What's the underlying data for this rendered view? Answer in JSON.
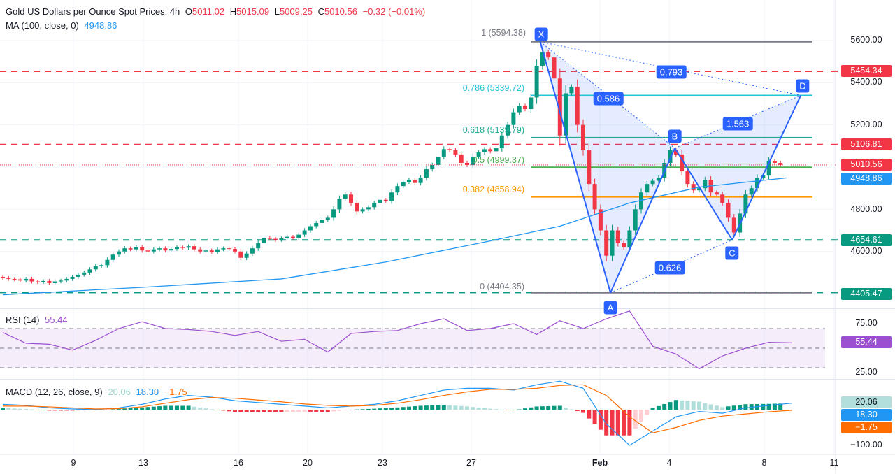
{
  "header": {
    "title": "Gold US Dollars per Ounce Spot Prices, 4h",
    "open_label": "O",
    "open": "5011.02",
    "high_label": "H",
    "high": "5015.09",
    "low_label": "L",
    "low": "5009.25",
    "close_label": "C",
    "close": "5010.56",
    "change": "−0.32 (−0.01%)",
    "ma_label": "MA (100, close, 0)",
    "ma_value": "4948.86"
  },
  "chart_data": [
    {
      "type": "candlestick",
      "title": "Gold US Dollars per Ounce Spot Prices, 4h",
      "ylim": [
        4330,
        5700
      ],
      "yticks": [
        "5600.00",
        "5400.00",
        "5200.00",
        "4800.00",
        "4600.00"
      ],
      "xticks": [
        "9",
        "13",
        "16",
        "20",
        "23",
        "27",
        "Feb",
        "4",
        "8",
        "11"
      ],
      "closes": [
        4475,
        4470,
        4468,
        4462,
        4470,
        4458,
        4455,
        4460,
        4450,
        4458,
        4462,
        4470,
        4480,
        4490,
        4500,
        4515,
        4530,
        4535,
        4560,
        4585,
        4600,
        4615,
        4610,
        4620,
        4605,
        4600,
        4610,
        4615,
        4605,
        4612,
        4620,
        4618,
        4625,
        4610,
        4600,
        4605,
        4598,
        4610,
        4615,
        4612,
        4600,
        4570,
        4590,
        4615,
        4640,
        4665,
        4660,
        4655,
        4662,
        4670,
        4665,
        4680,
        4700,
        4720,
        4735,
        4750,
        4760,
        4800,
        4850,
        4870,
        4830,
        4790,
        4800,
        4810,
        4830,
        4845,
        4840,
        4880,
        4910,
        4930,
        4940,
        4925,
        4950,
        4990,
        5010,
        5050,
        5085,
        5080,
        5060,
        5020,
        5010,
        5050,
        5070,
        5085,
        5075,
        5090,
        5150,
        5200,
        5260,
        5290,
        5275,
        5330,
        5480,
        5545,
        5520,
        5420,
        5150,
        5350,
        5380,
        5200,
        5080,
        4920,
        4800,
        4700,
        4580,
        4700,
        4640,
        4620,
        4700,
        4800,
        4880,
        4920,
        4935,
        4950,
        5020,
        5080,
        5060,
        4980,
        4920,
        4890,
        4900,
        4940,
        4880,
        4870,
        4830,
        4760,
        4690,
        4780,
        4870,
        4900,
        4950,
        4960,
        5030,
        5020,
        5010.56
      ],
      "ma100": {
        "name": "MA (100, close, 0)",
        "color": "#2196f3",
        "points": [
          [
            0,
            4395
          ],
          [
            24,
            4430
          ],
          [
            48,
            4470
          ],
          [
            66,
            4550
          ],
          [
            84,
            4650
          ],
          [
            96,
            4720
          ],
          [
            108,
            4830
          ],
          [
            120,
            4905
          ],
          [
            135,
            4948.86
          ]
        ]
      },
      "horizontal_levels": [
        {
          "price": "5454.34",
          "color": "#f23645"
        },
        {
          "price": "5106.81",
          "color": "#f23645"
        },
        {
          "price": "4654.61",
          "color": "#089981"
        },
        {
          "price": "4405.47",
          "color": "#089981"
        }
      ],
      "last_price": {
        "price": "5010.56",
        "color": "#f23645"
      },
      "ma_last": {
        "price": "4948.86",
        "color": "#2196f3"
      },
      "fib_levels": [
        {
          "label": "1 (5594.38)",
          "price": 5594.38,
          "color": "#787b86"
        },
        {
          "label": "0.786 (5339.72)",
          "price": 5339.72,
          "color": "#26c6da"
        },
        {
          "label": "0.618 (5139.79)",
          "price": 5139.79,
          "color": "#22ab94"
        },
        {
          "label": "0.5 (4999.37)",
          "price": 4999.37,
          "color": "#4caf50"
        },
        {
          "label": "0.382 (4858.94)",
          "price": 4858.94,
          "color": "#ff9800"
        },
        {
          "label": "0 (4404.35)",
          "price": 4404.35,
          "color": "#787b86"
        }
      ],
      "harmonic": {
        "color": "#2962ff",
        "points": [
          {
            "label": "X",
            "bar": 92.6,
            "price": 5594.38
          },
          {
            "label": "A",
            "bar": 104.7,
            "price": 4404.35
          },
          {
            "label": "B",
            "bar": 115.8,
            "price": 5090
          },
          {
            "label": "C",
            "bar": 125.7,
            "price": 4654.61
          },
          {
            "label": "D",
            "bar": 137.5,
            "price": 5339.72
          }
        ],
        "ratios": {
          "XB": "0.586",
          "AC": "0.626",
          "BD": "1.563",
          "XD": "0.793"
        }
      }
    },
    {
      "type": "line",
      "title": "RSI (14)",
      "value": "55.44",
      "color": "#9c4fd0",
      "ylim": [
        20,
        95
      ],
      "bands": [
        70,
        50,
        30
      ],
      "yticks": [
        "75.00",
        "25.00"
      ],
      "values_every_4_bars": [
        66,
        55,
        54,
        48,
        58,
        70,
        77,
        70,
        69,
        67,
        63,
        67,
        57,
        59,
        46,
        65,
        67,
        68,
        75,
        80,
        68,
        70,
        75,
        64,
        78,
        70,
        80,
        88,
        52,
        44,
        29,
        42,
        50,
        56,
        55.44
      ]
    },
    {
      "type": "bar+line",
      "title": "MACD (12, 26, close, 9)",
      "histogram_value": "20.06",
      "macd_value": "18.30",
      "signal_value": "−1.75",
      "colors": {
        "macd": "#2196f3",
        "signal": "#ff6d00",
        "hist_up": "#089981",
        "hist_up_light": "#b2dfdb",
        "hist_down": "#f23645",
        "hist_down_light": "#ffcdd2"
      },
      "ytick": "−100.00",
      "macd_every_4_bars": [
        15,
        12,
        5,
        2,
        0,
        5,
        15,
        30,
        40,
        35,
        25,
        20,
        15,
        10,
        5,
        10,
        15,
        25,
        40,
        55,
        60,
        60,
        55,
        70,
        80,
        60,
        -40,
        -100,
        -60,
        -20,
        -5,
        -10,
        5,
        12,
        18.3
      ],
      "signal_every_4_bars": [
        10,
        10,
        8,
        5,
        2,
        3,
        8,
        18,
        28,
        34,
        32,
        27,
        22,
        16,
        12,
        10,
        12,
        18,
        28,
        40,
        50,
        57,
        57,
        60,
        68,
        70,
        40,
        -20,
        -65,
        -50,
        -30,
        -18,
        -12,
        -6,
        -1.75
      ]
    }
  ]
}
